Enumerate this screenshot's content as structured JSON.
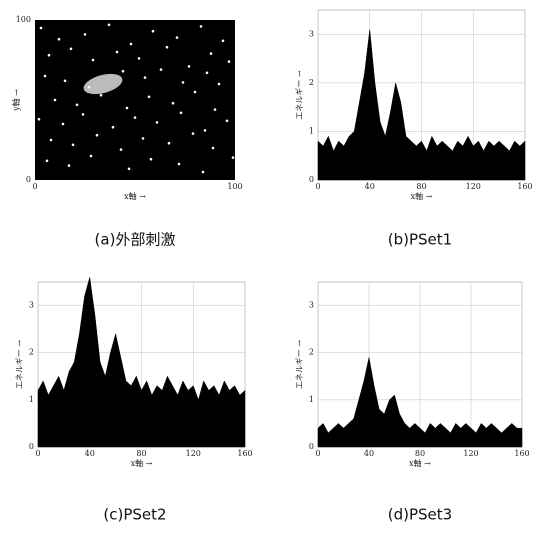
{
  "chart_data": [
    {
      "type": "scatter",
      "title": "(a)外部刺激",
      "xlabel": "x軸 →",
      "ylabel": "y軸 →",
      "xlim": [
        0,
        100
      ],
      "ylim": [
        0,
        100
      ],
      "xticks": [
        0,
        100
      ],
      "yticks": [
        0,
        100
      ],
      "grid": false,
      "color": "#ffffff",
      "background": "#000000",
      "x": [
        3,
        12,
        25,
        37,
        48,
        59,
        71,
        83,
        94,
        7,
        18,
        29,
        41,
        52,
        66,
        77,
        88,
        97,
        5,
        15,
        27,
        44,
        55,
        63,
        74,
        86,
        92,
        10,
        21,
        33,
        46,
        57,
        69,
        80,
        90,
        2,
        14,
        24,
        39,
        50,
        61,
        73,
        85,
        96,
        8,
        19,
        31,
        43,
        54,
        67,
        79,
        89,
        6,
        17,
        28,
        47,
        58,
        72,
        84,
        99
      ],
      "y": [
        95,
        88,
        91,
        97,
        85,
        93,
        89,
        96,
        87,
        78,
        82,
        75,
        80,
        76,
        83,
        71,
        79,
        74,
        65,
        62,
        58,
        68,
        64,
        69,
        61,
        67,
        60,
        50,
        47,
        53,
        45,
        52,
        48,
        55,
        44,
        38,
        35,
        41,
        33,
        39,
        36,
        42,
        31,
        37,
        25,
        22,
        28,
        19,
        26,
        23,
        29,
        20,
        12,
        9,
        15,
        7,
        13,
        10,
        5,
        14
      ]
    },
    {
      "type": "area",
      "title": "(b)PSet1",
      "xlabel": "x軸 →",
      "ylabel": "エネルギー →",
      "xlim": [
        0,
        160
      ],
      "ylim": [
        0,
        3.5
      ],
      "xticks": [
        0,
        40,
        80,
        120,
        160
      ],
      "yticks": [
        0,
        1,
        2,
        3
      ],
      "grid": true,
      "color": "#000000",
      "x": [
        0,
        4,
        8,
        12,
        16,
        20,
        24,
        28,
        32,
        36,
        40,
        44,
        48,
        52,
        56,
        60,
        64,
        68,
        72,
        76,
        80,
        84,
        88,
        92,
        96,
        100,
        104,
        108,
        112,
        116,
        120,
        124,
        128,
        132,
        136,
        140,
        144,
        148,
        152,
        156,
        160
      ],
      "values": [
        0.8,
        0.7,
        0.9,
        0.6,
        0.8,
        0.7,
        0.9,
        1.0,
        1.6,
        2.2,
        3.1,
        2.0,
        1.2,
        0.9,
        1.4,
        2.0,
        1.6,
        0.9,
        0.8,
        0.7,
        0.8,
        0.6,
        0.9,
        0.7,
        0.8,
        0.7,
        0.6,
        0.8,
        0.7,
        0.9,
        0.7,
        0.8,
        0.6,
        0.8,
        0.7,
        0.8,
        0.7,
        0.6,
        0.8,
        0.7,
        0.8
      ]
    },
    {
      "type": "area",
      "title": "(c)PSet2",
      "xlabel": "x軸 →",
      "ylabel": "エネルギー →",
      "xlim": [
        0,
        160
      ],
      "ylim": [
        0,
        3.5
      ],
      "xticks": [
        0,
        40,
        80,
        120,
        160
      ],
      "yticks": [
        0,
        1,
        2,
        3
      ],
      "grid": true,
      "color": "#000000",
      "x": [
        0,
        4,
        8,
        12,
        16,
        20,
        24,
        28,
        32,
        36,
        40,
        44,
        48,
        52,
        56,
        60,
        64,
        68,
        72,
        76,
        80,
        84,
        88,
        92,
        96,
        100,
        104,
        108,
        112,
        116,
        120,
        124,
        128,
        132,
        136,
        140,
        144,
        148,
        152,
        156,
        160
      ],
      "values": [
        1.2,
        1.4,
        1.1,
        1.3,
        1.5,
        1.2,
        1.6,
        1.8,
        2.4,
        3.2,
        3.6,
        2.8,
        1.8,
        1.5,
        2.0,
        2.4,
        1.9,
        1.4,
        1.3,
        1.5,
        1.2,
        1.4,
        1.1,
        1.3,
        1.2,
        1.5,
        1.3,
        1.1,
        1.4,
        1.2,
        1.3,
        1.0,
        1.4,
        1.2,
        1.3,
        1.1,
        1.4,
        1.2,
        1.3,
        1.1,
        1.2
      ]
    },
    {
      "type": "area",
      "title": "(d)PSet3",
      "xlabel": "x軸 →",
      "ylabel": "エネルギー →",
      "xlim": [
        0,
        160
      ],
      "ylim": [
        0,
        3.5
      ],
      "xticks": [
        0,
        40,
        80,
        120,
        160
      ],
      "yticks": [
        0,
        1,
        2,
        3
      ],
      "grid": true,
      "color": "#000000",
      "x": [
        0,
        4,
        8,
        12,
        16,
        20,
        24,
        28,
        32,
        36,
        40,
        44,
        48,
        52,
        56,
        60,
        64,
        68,
        72,
        76,
        80,
        84,
        88,
        92,
        96,
        100,
        104,
        108,
        112,
        116,
        120,
        124,
        128,
        132,
        136,
        140,
        144,
        148,
        152,
        156,
        160
      ],
      "values": [
        0.4,
        0.5,
        0.3,
        0.4,
        0.5,
        0.4,
        0.5,
        0.6,
        1.0,
        1.4,
        1.9,
        1.3,
        0.8,
        0.7,
        1.0,
        1.1,
        0.7,
        0.5,
        0.4,
        0.5,
        0.4,
        0.3,
        0.5,
        0.4,
        0.5,
        0.4,
        0.3,
        0.5,
        0.4,
        0.5,
        0.4,
        0.3,
        0.5,
        0.4,
        0.5,
        0.4,
        0.3,
        0.4,
        0.5,
        0.4,
        0.4
      ]
    }
  ]
}
